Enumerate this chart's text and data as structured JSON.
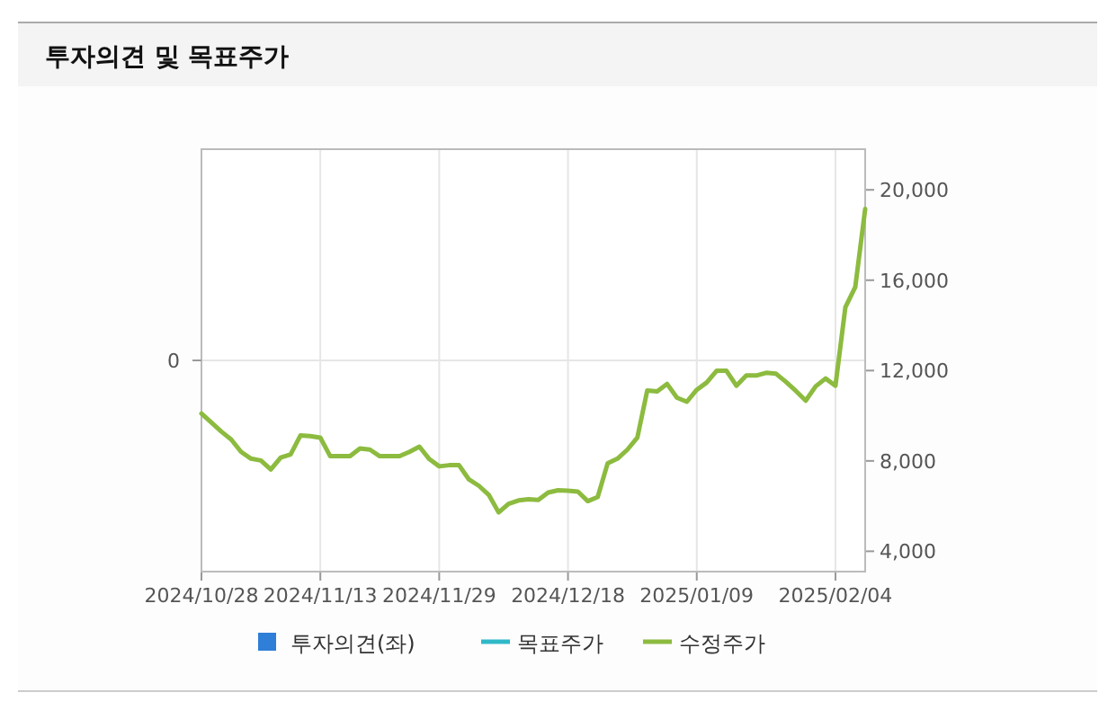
{
  "chart_data": {
    "type": "line",
    "title": "투자의견 및 목표주가",
    "categories": [
      "2024/10/28",
      null,
      null,
      null,
      null,
      null,
      null,
      null,
      null,
      null,
      null,
      null,
      "2024/11/13",
      null,
      null,
      null,
      null,
      null,
      null,
      null,
      null,
      null,
      null,
      null,
      "2024/11/29",
      null,
      null,
      null,
      null,
      null,
      null,
      null,
      null,
      null,
      null,
      null,
      null,
      "2024/12/18",
      null,
      null,
      null,
      null,
      null,
      null,
      null,
      null,
      null,
      null,
      null,
      null,
      "2025/01/09",
      null,
      null,
      null,
      null,
      null,
      null,
      null,
      null,
      null,
      null,
      null,
      null,
      null,
      "2025/02/04",
      null,
      null,
      null
    ],
    "series": [
      {
        "name": "투자의견(좌)",
        "type": "bar",
        "axis": "y",
        "color": "#2f7ed8",
        "values": [
          null,
          null,
          null,
          null,
          null,
          null,
          null,
          null,
          null,
          null,
          null,
          null,
          null,
          null,
          null,
          null,
          null,
          null,
          null,
          null,
          null,
          null,
          null,
          null,
          null,
          null,
          null,
          null,
          null,
          null,
          null,
          null,
          null,
          null,
          null,
          null,
          null,
          null,
          null,
          null,
          null,
          null,
          null,
          null,
          null,
          null,
          null,
          null,
          null,
          null,
          null,
          null,
          null,
          null,
          null,
          null,
          null,
          null,
          null,
          null,
          null,
          null,
          null,
          null,
          null,
          null,
          null,
          null
        ]
      },
      {
        "name": "목표주가",
        "type": "line",
        "axis": "y2",
        "color": "#2fb8c8",
        "values": [
          null,
          null,
          null,
          null,
          null,
          null,
          null,
          null,
          null,
          null,
          null,
          null,
          null,
          null,
          null,
          null,
          null,
          null,
          null,
          null,
          null,
          null,
          null,
          null,
          null,
          null,
          null,
          null,
          null,
          null,
          null,
          null,
          null,
          null,
          null,
          null,
          null,
          null,
          null,
          null,
          null,
          null,
          null,
          null,
          null,
          null,
          null,
          null,
          null,
          null,
          null,
          null,
          null,
          null,
          null,
          null,
          null,
          null,
          null,
          null,
          null,
          null,
          null,
          null,
          null,
          null,
          null,
          null
        ]
      },
      {
        "name": "수정주가",
        "axis": "y2",
        "color": "#8cbb3f",
        "values": [
          10100,
          9700,
          9300,
          8950,
          8400,
          8100,
          8020,
          7620,
          8150,
          8290,
          9130,
          9100,
          9030,
          8210,
          8210,
          8210,
          8550,
          8500,
          8210,
          8210,
          8210,
          8400,
          8630,
          8080,
          7760,
          7810,
          7810,
          7180,
          6900,
          6500,
          5720,
          6100,
          6250,
          6300,
          6270,
          6600,
          6700,
          6680,
          6640,
          6220,
          6400,
          7890,
          8100,
          8500,
          9030,
          11120,
          11080,
          11410,
          10800,
          10620,
          11150,
          11470,
          11990,
          11990,
          11330,
          11780,
          11780,
          11900,
          11860,
          11500,
          11100,
          10670,
          11300,
          11650,
          11330,
          14800,
          15700,
          19150
        ]
      }
    ],
    "annotations": [
      "0"
    ],
    "y2lim": [
      3100,
      21800
    ],
    "y2ticks": [
      {
        "value": 4000,
        "label": "4,000"
      },
      {
        "value": 8000,
        "label": "8,000"
      },
      {
        "value": 12000,
        "label": "12,000"
      },
      {
        "value": 16000,
        "label": "16,000"
      },
      {
        "value": 20000,
        "label": "20,000"
      }
    ],
    "grid": true,
    "legend": "bottom"
  }
}
